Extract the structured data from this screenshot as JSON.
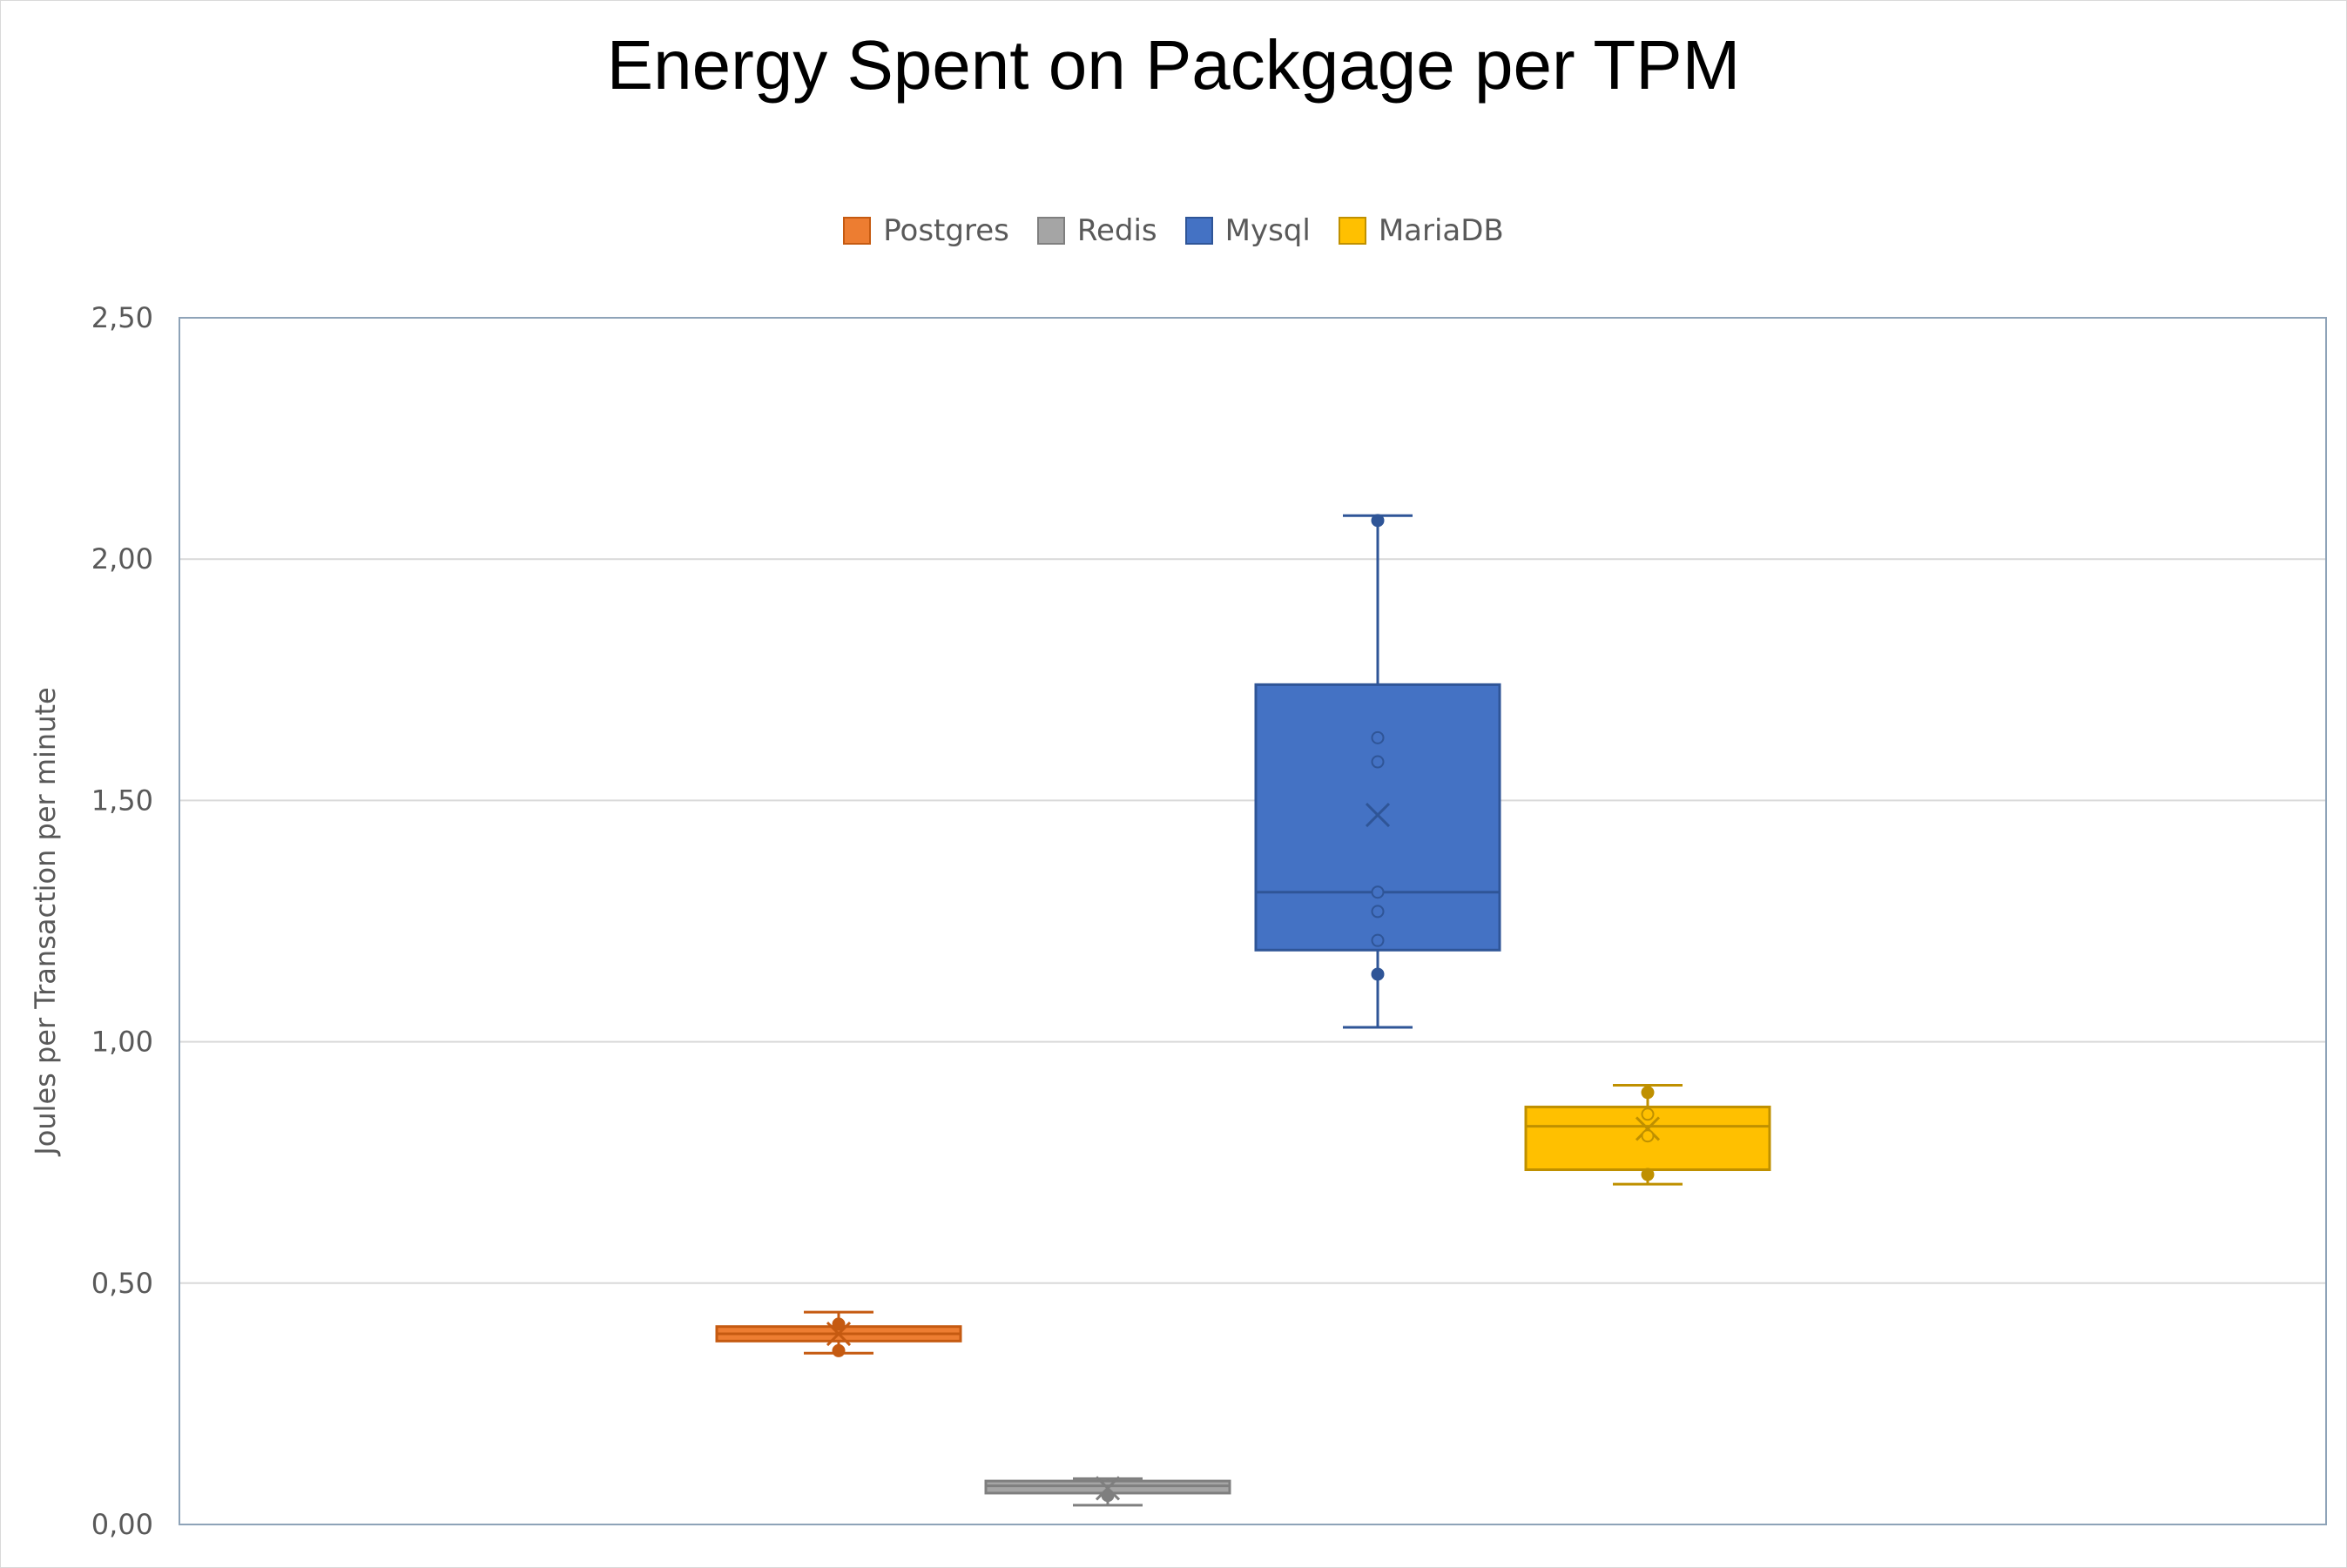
{
  "chart_data": {
    "type": "box",
    "title": "Energy Spent on Packgage per TPM",
    "xlabel": "",
    "ylabel": "Joules per Transaction per minute",
    "ylim": [
      0,
      2.5
    ],
    "y_ticks": [
      0,
      0.5,
      1.0,
      1.5,
      2.0,
      2.5
    ],
    "y_tick_labels": [
      "0,00",
      "0,50",
      "1,00",
      "1,50",
      "2,00",
      "2,50"
    ],
    "grid": "horizontal major gridlines",
    "legend_position": "top",
    "series": [
      {
        "name": "Postgres",
        "color": "#ED7D31",
        "stroke": "#C55A11",
        "whisker_min": 0.355,
        "q1": 0.38,
        "median": 0.395,
        "q3": 0.41,
        "whisker_max": 0.44,
        "mean": 0.395,
        "points": [
          0.36,
          0.415
        ]
      },
      {
        "name": "Redis",
        "color": "#A5A5A5",
        "stroke": "#7F7F7F",
        "whisker_min": 0.04,
        "q1": 0.065,
        "median": 0.08,
        "q3": 0.09,
        "whisker_max": 0.095,
        "mean": 0.075,
        "points": [
          0.06
        ]
      },
      {
        "name": "Mysql",
        "color": "#4472C4",
        "stroke": "#2F5597",
        "whisker_min": 1.03,
        "q1": 1.19,
        "median": 1.31,
        "q3": 1.74,
        "whisker_max": 2.09,
        "mean": 1.47,
        "points": [
          1.14,
          1.21,
          1.27,
          1.31,
          1.58,
          1.63,
          2.08
        ]
      },
      {
        "name": "MariaDB",
        "color": "#FFC000",
        "stroke": "#BF9000",
        "whisker_min": 0.705,
        "q1": 0.735,
        "median": 0.825,
        "q3": 0.865,
        "whisker_max": 0.91,
        "mean": 0.82,
        "points": [
          0.725,
          0.805,
          0.85,
          0.895
        ]
      }
    ]
  }
}
